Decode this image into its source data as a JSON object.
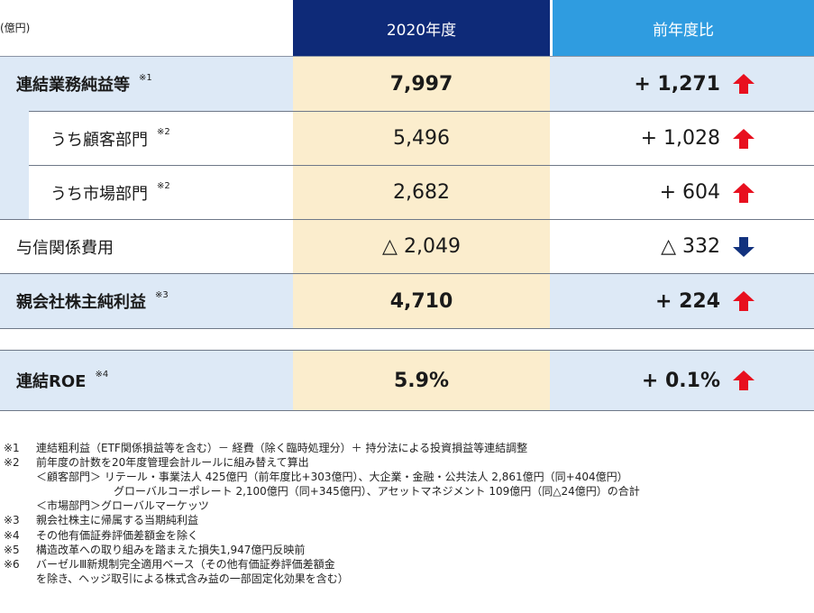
{
  "unit": "(億円)",
  "headers": {
    "year": "2020年度",
    "diff": "前年度比"
  },
  "rows": [
    {
      "label": "連結業務純益等",
      "note": "※1",
      "value": "7,997",
      "diff": "+ 1,271",
      "trend": "up"
    },
    {
      "label": "うち顧客部門",
      "note": "※2",
      "value": "5,496",
      "diff": "+ 1,028",
      "trend": "up"
    },
    {
      "label": "うち市場部門",
      "note": "※2",
      "value": "2,682",
      "diff": "+ 604",
      "trend": "up"
    },
    {
      "label": "与信関係費用",
      "note": "",
      "value": "△ 2,049",
      "diff": "△ 332",
      "trend": "down"
    },
    {
      "label": "親会社株主純利益",
      "note": "※3",
      "value": "4,710",
      "diff": "+ 224",
      "trend": "up"
    },
    {
      "label": "連結ROE",
      "note": "※4",
      "value": "5.9%",
      "diff": "+ 0.1%",
      "trend": "up"
    }
  ],
  "colors": {
    "up_arrow": "#e8101f",
    "down_arrow": "#12327e"
  },
  "notes": {
    "n1": {
      "mark": "※1",
      "text": "連結粗利益（ETF関係損益等を含む）－ 経費（除く臨時処理分）＋ 持分法による投資損益等連結調整"
    },
    "n2": {
      "mark": "※2",
      "text": "前年度の計数を20年度管理会計ルールに組み替えて算出",
      "l2": "＜顧客部門＞ リテール・事業法人 425億円（前年度比+303億円）、大企業・金融・公共法人 2,861億円（同+404億円）",
      "l3": "グローバルコーポレート 2,100億円（同+345億円）、アセットマネジメント 109億円（同△24億円）の合計",
      "l4": "＜市場部門＞グローバルマーケッツ"
    },
    "n3": {
      "mark": "※3",
      "text": "親会社株主に帰属する当期純利益"
    },
    "n4": {
      "mark": "※4",
      "text": "その他有価証券評価差額金を除く"
    },
    "n5": {
      "mark": "※5",
      "text": "構造改革への取り組みを踏まえた損失1,947億円反映前"
    },
    "n6": {
      "mark": "※6",
      "text": "バーゼルⅢ新規制完全適用ベース（その他有価証券評価差額金",
      "l2": "を除き、ヘッジ取引による株式含み益の一部固定化効果を含む）"
    }
  }
}
